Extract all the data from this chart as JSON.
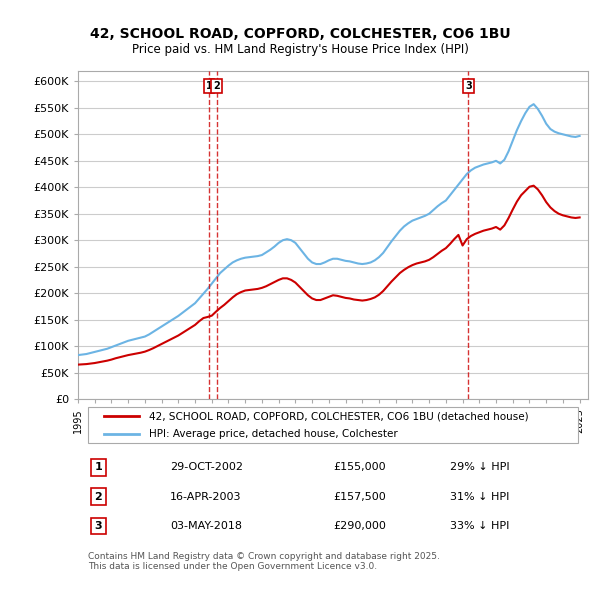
{
  "title": "42, SCHOOL ROAD, COPFORD, COLCHESTER, CO6 1BU",
  "subtitle": "Price paid vs. HM Land Registry's House Price Index (HPI)",
  "ylabel": "",
  "xlabel": "",
  "ylim": [
    0,
    620000
  ],
  "yticks": [
    0,
    50000,
    100000,
    150000,
    200000,
    250000,
    300000,
    350000,
    400000,
    450000,
    500000,
    550000,
    600000
  ],
  "ytick_labels": [
    "£0",
    "£50K",
    "£100K",
    "£150K",
    "£200K",
    "£250K",
    "£300K",
    "£350K",
    "£400K",
    "£450K",
    "£500K",
    "£550K",
    "£600K"
  ],
  "background_color": "#ffffff",
  "grid_color": "#cccccc",
  "hpi_color": "#6cb4e4",
  "price_color": "#cc0000",
  "transactions": [
    {
      "num": 1,
      "date": "29-OCT-2002",
      "price": 155000,
      "pct": "29%",
      "x": 2002.83
    },
    {
      "num": 2,
      "date": "16-APR-2003",
      "price": 157500,
      "pct": "31%",
      "x": 2003.29
    },
    {
      "num": 3,
      "date": "03-MAY-2018",
      "price": 290000,
      "pct": "33%",
      "x": 2018.34
    }
  ],
  "legend_label_price": "42, SCHOOL ROAD, COPFORD, COLCHESTER, CO6 1BU (detached house)",
  "legend_label_hpi": "HPI: Average price, detached house, Colchester",
  "footer": "Contains HM Land Registry data © Crown copyright and database right 2025.\nThis data is licensed under the Open Government Licence v3.0.",
  "hpi_x": [
    1995,
    1995.25,
    1995.5,
    1995.75,
    1996,
    1996.25,
    1996.5,
    1996.75,
    1997,
    1997.25,
    1997.5,
    1997.75,
    1998,
    1998.25,
    1998.5,
    1998.75,
    1999,
    1999.25,
    1999.5,
    1999.75,
    2000,
    2000.25,
    2000.5,
    2000.75,
    2001,
    2001.25,
    2001.5,
    2001.75,
    2002,
    2002.25,
    2002.5,
    2002.75,
    2003,
    2003.25,
    2003.5,
    2003.75,
    2004,
    2004.25,
    2004.5,
    2004.75,
    2005,
    2005.25,
    2005.5,
    2005.75,
    2006,
    2006.25,
    2006.5,
    2006.75,
    2007,
    2007.25,
    2007.5,
    2007.75,
    2008,
    2008.25,
    2008.5,
    2008.75,
    2009,
    2009.25,
    2009.5,
    2009.75,
    2010,
    2010.25,
    2010.5,
    2010.75,
    2011,
    2011.25,
    2011.5,
    2011.75,
    2012,
    2012.25,
    2012.5,
    2012.75,
    2013,
    2013.25,
    2013.5,
    2013.75,
    2014,
    2014.25,
    2014.5,
    2014.75,
    2015,
    2015.25,
    2015.5,
    2015.75,
    2016,
    2016.25,
    2016.5,
    2016.75,
    2017,
    2017.25,
    2017.5,
    2017.75,
    2018,
    2018.25,
    2018.5,
    2018.75,
    2019,
    2019.25,
    2019.5,
    2019.75,
    2020,
    2020.25,
    2020.5,
    2020.75,
    2021,
    2021.25,
    2021.5,
    2021.75,
    2022,
    2022.25,
    2022.5,
    2022.75,
    2023,
    2023.25,
    2023.5,
    2023.75,
    2024,
    2024.25,
    2024.5,
    2024.75,
    2025
  ],
  "hpi_y": [
    83000,
    84000,
    85000,
    87000,
    89000,
    91000,
    93000,
    95000,
    98000,
    101000,
    104000,
    107000,
    110000,
    112000,
    114000,
    116000,
    118000,
    122000,
    127000,
    132000,
    137000,
    142000,
    147000,
    152000,
    157000,
    163000,
    169000,
    175000,
    181000,
    190000,
    199000,
    208000,
    218000,
    228000,
    238000,
    245000,
    252000,
    258000,
    262000,
    265000,
    267000,
    268000,
    269000,
    270000,
    272000,
    277000,
    282000,
    288000,
    295000,
    300000,
    302000,
    300000,
    295000,
    285000,
    275000,
    265000,
    258000,
    255000,
    255000,
    258000,
    262000,
    265000,
    265000,
    263000,
    261000,
    260000,
    258000,
    256000,
    255000,
    256000,
    258000,
    262000,
    268000,
    276000,
    287000,
    298000,
    308000,
    318000,
    326000,
    332000,
    337000,
    340000,
    343000,
    346000,
    350000,
    357000,
    364000,
    370000,
    375000,
    385000,
    395000,
    405000,
    415000,
    425000,
    432000,
    437000,
    440000,
    443000,
    445000,
    447000,
    450000,
    445000,
    452000,
    468000,
    488000,
    508000,
    525000,
    540000,
    552000,
    557000,
    548000,
    535000,
    520000,
    510000,
    505000,
    502000,
    500000,
    498000,
    496000,
    495000,
    497000
  ],
  "price_x": [
    1995,
    1995.25,
    1995.5,
    1995.75,
    1996,
    1996.25,
    1996.5,
    1996.75,
    1997,
    1997.25,
    1997.5,
    1997.75,
    1998,
    1998.25,
    1998.5,
    1998.75,
    1999,
    1999.25,
    1999.5,
    1999.75,
    2000,
    2000.25,
    2000.5,
    2000.75,
    2001,
    2001.25,
    2001.5,
    2001.75,
    2002,
    2002.25,
    2002.5,
    2002.75,
    2003,
    2003.25,
    2003.5,
    2003.75,
    2004,
    2004.25,
    2004.5,
    2004.75,
    2005,
    2005.25,
    2005.5,
    2005.75,
    2006,
    2006.25,
    2006.5,
    2006.75,
    2007,
    2007.25,
    2007.5,
    2007.75,
    2008,
    2008.25,
    2008.5,
    2008.75,
    2009,
    2009.25,
    2009.5,
    2009.75,
    2010,
    2010.25,
    2010.5,
    2010.75,
    2011,
    2011.25,
    2011.5,
    2011.75,
    2012,
    2012.25,
    2012.5,
    2012.75,
    2013,
    2013.25,
    2013.5,
    2013.75,
    2014,
    2014.25,
    2014.5,
    2014.75,
    2015,
    2015.25,
    2015.5,
    2015.75,
    2016,
    2016.25,
    2016.5,
    2016.75,
    2017,
    2017.25,
    2017.5,
    2017.75,
    2018,
    2018.25,
    2018.5,
    2018.75,
    2019,
    2019.25,
    2019.5,
    2019.75,
    2020,
    2020.25,
    2020.5,
    2020.75,
    2021,
    2021.25,
    2021.5,
    2021.75,
    2022,
    2022.25,
    2022.5,
    2022.75,
    2023,
    2023.25,
    2023.5,
    2023.75,
    2024,
    2024.25,
    2024.5,
    2024.75,
    2025
  ],
  "price_y": [
    65000,
    65500,
    66000,
    67000,
    68000,
    69500,
    71000,
    72500,
    74500,
    77000,
    79000,
    81000,
    83000,
    84500,
    86000,
    87500,
    89500,
    92500,
    96000,
    100000,
    104000,
    108000,
    112000,
    116000,
    120000,
    125000,
    130000,
    135000,
    140000,
    147000,
    153000,
    155000,
    157500,
    165000,
    172000,
    178000,
    185000,
    192000,
    198000,
    202000,
    205000,
    206000,
    207000,
    208000,
    210000,
    213000,
    217000,
    221000,
    225000,
    228000,
    228000,
    225000,
    220000,
    212000,
    204000,
    196000,
    190000,
    187000,
    187000,
    190000,
    193000,
    196000,
    195000,
    193000,
    191000,
    190000,
    188000,
    187000,
    186000,
    187000,
    189000,
    192000,
    197000,
    204000,
    213000,
    222000,
    230000,
    238000,
    244000,
    249000,
    253000,
    256000,
    258000,
    260000,
    263000,
    268000,
    274000,
    280000,
    285000,
    293000,
    302000,
    310000,
    290000,
    302000,
    308000,
    312000,
    315000,
    318000,
    320000,
    322000,
    325000,
    320000,
    328000,
    342000,
    358000,
    373000,
    385000,
    393000,
    401000,
    403000,
    396000,
    385000,
    372000,
    362000,
    355000,
    350000,
    347000,
    345000,
    343000,
    342000,
    343000
  ]
}
